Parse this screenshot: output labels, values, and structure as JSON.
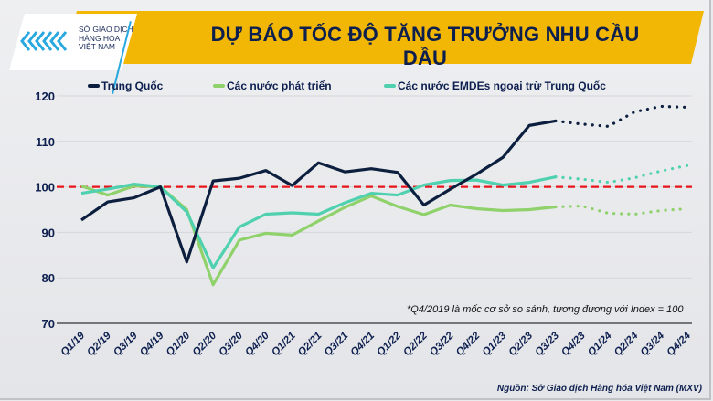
{
  "header": {
    "title": "DỰ BÁO TỐC ĐỘ TĂNG TRƯỞNG NHU CẦU DẦU",
    "logo_lines": [
      "SỞ GIAO DỊCH",
      "HÀNG HÓA",
      "VIỆT NAM"
    ]
  },
  "colors": {
    "banner": "#f2b705",
    "china": "#0d1f3f",
    "developed": "#8fd16a",
    "emdes": "#4fd1b0",
    "baseline": "#e8141c"
  },
  "note": "*Q4/2019 là mốc cơ sở so sánh, tương đương với Index = 100",
  "source": "Nguồn: Sở Giao dịch Hàng hóa Việt Nam (MXV)",
  "chart_data": {
    "type": "line",
    "title": "DỰ BÁO TỐC ĐỘ TĂNG TRƯỞNG NHU CẦU DẦU",
    "categories": [
      "Q1/19",
      "Q2/19",
      "Q3/19",
      "Q4/19",
      "Q1/20",
      "Q2/20",
      "Q3/20",
      "Q4/20",
      "Q1/21",
      "Q2/21",
      "Q3/21",
      "Q4/21",
      "Q1/22",
      "Q2/22",
      "Q3/22",
      "Q4/22",
      "Q1/23",
      "Q2/23",
      "Q3/23",
      "Q4/23",
      "Q1/24",
      "Q2/24",
      "Q3/24",
      "Q4/24"
    ],
    "forecast_from": "Q3/23",
    "ylim": [
      70,
      120
    ],
    "yticks": [
      70,
      80,
      90,
      100,
      110,
      120
    ],
    "grid": true,
    "baseline": 100,
    "legend_position": "top",
    "series": [
      {
        "name": "Trung Quốc",
        "color": "#0d1f3f",
        "values": [
          92.7,
          96.7,
          97.6,
          100,
          83.5,
          101.3,
          101.9,
          103.6,
          100.3,
          105.3,
          103.3,
          104,
          103.2,
          96,
          99.5,
          102.8,
          106.5,
          113.5,
          114.5,
          113.8,
          113.3,
          116.5,
          117.7,
          117.5
        ]
      },
      {
        "name": "Các nước phát triển",
        "color": "#8fd16a",
        "values": [
          100.2,
          98.2,
          100.2,
          100,
          95,
          78.5,
          88.3,
          89.8,
          89.4,
          92.5,
          95.5,
          98,
          95.7,
          93.9,
          96,
          95.2,
          94.8,
          95,
          95.6,
          95.8,
          94.2,
          94,
          94.8,
          95.2
        ]
      },
      {
        "name": "Các nước EMDEs ngoại trừ Trung Quốc",
        "color": "#4fd1b0",
        "values": [
          98.6,
          99.5,
          100.6,
          100,
          94.5,
          82.2,
          91.2,
          94,
          94.3,
          94,
          96.5,
          98.6,
          98.2,
          100.4,
          101.4,
          101.5,
          100.4,
          101,
          102.2,
          101.7,
          101,
          102,
          103.5,
          104.7
        ]
      }
    ]
  }
}
